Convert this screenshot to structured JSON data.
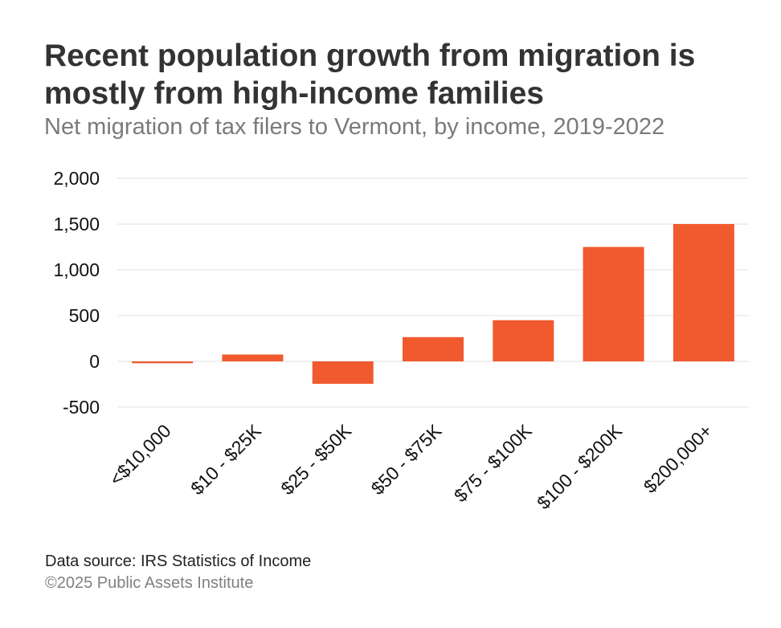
{
  "title": "Recent population growth from migration is mostly from high-income families",
  "subtitle": "Net migration of tax filers to Vermont, by income, 2019-2022",
  "source": "Data source: IRS Statistics of Income",
  "copyright": "©2025 Public Assets Institute",
  "colors": {
    "bar": "#f05a2e",
    "grid": "#e0e0e0",
    "axis_text": "#111111"
  },
  "chart_data": {
    "type": "bar",
    "categories": [
      "<$10,000",
      "$10 - $25K",
      "$25 - $50K",
      "$50 - $75K",
      "$75 - $100K",
      "$100 - $200K",
      "$200,000+"
    ],
    "values": [
      -20,
      75,
      -245,
      265,
      450,
      1250,
      1500
    ],
    "yticks": [
      2000,
      1500,
      1000,
      500,
      0,
      -500
    ],
    "ytick_labels": [
      "2,000",
      "1,500",
      "1,000",
      "500",
      "0",
      "-500"
    ],
    "ylim": [
      -500,
      2000
    ],
    "grid": true,
    "legend": "none"
  }
}
